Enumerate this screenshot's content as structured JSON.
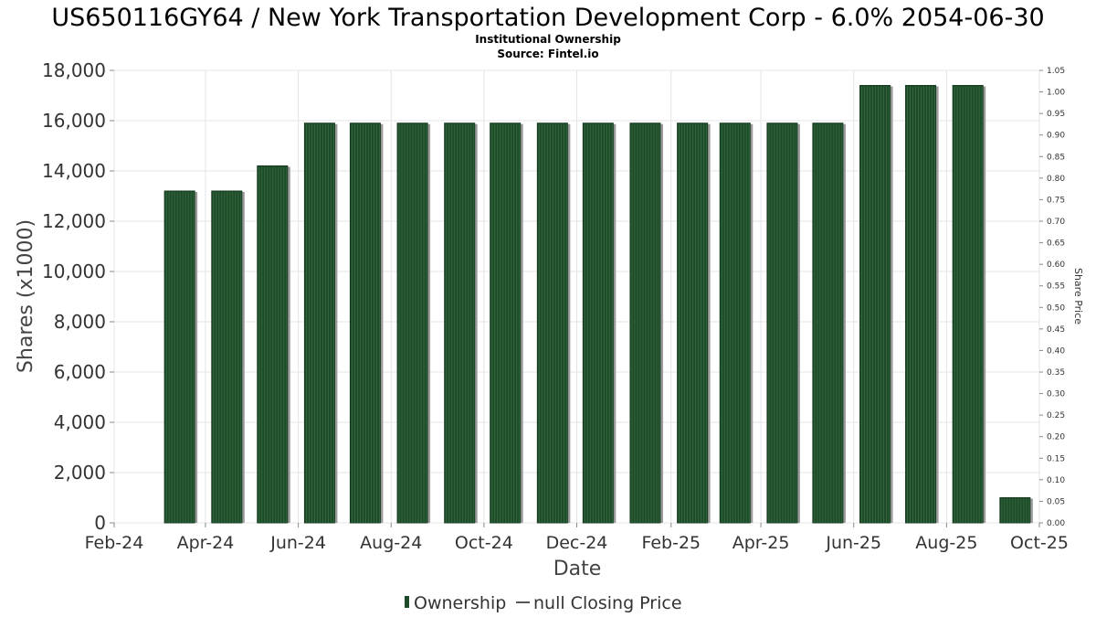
{
  "chart_data": {
    "type": "bar",
    "title": "US650116GY64 / New York Transportation Development Corp - 6.0% 2054-06-30",
    "subtitle_1": "Institutional Ownership",
    "subtitle_2": "Source: Fintel.io",
    "xlabel": "Date",
    "ylabel": "Shares (x1000)",
    "y2label": "Share Price",
    "x_range": [
      "2024-02-01",
      "2025-10-01"
    ],
    "ylim": [
      0,
      18000
    ],
    "y2lim": [
      0,
      1.05
    ],
    "xticks": [
      "Feb-24",
      "Apr-24",
      "Jun-24",
      "Aug-24",
      "Oct-24",
      "Dec-24",
      "Feb-25",
      "Apr-25",
      "Jun-25",
      "Aug-25",
      "Oct-25"
    ],
    "yticks": [
      "0",
      "2,000",
      "4,000",
      "6,000",
      "8,000",
      "10,000",
      "12,000",
      "14,000",
      "16,000",
      "18,000"
    ],
    "y2ticks": [
      "0.00",
      "0.05",
      "0.10",
      "0.15",
      "0.20",
      "0.25",
      "0.30",
      "0.35",
      "0.40",
      "0.45",
      "0.50",
      "0.55",
      "0.60",
      "0.65",
      "0.70",
      "0.75",
      "0.80",
      "0.85",
      "0.90",
      "0.95",
      "1.00",
      "1.05"
    ],
    "series": [
      {
        "name": "Ownership",
        "color": "#1f4a2a",
        "x": [
          "2024-03-15",
          "2024-04-15",
          "2024-05-15",
          "2024-06-15",
          "2024-07-15",
          "2024-08-15",
          "2024-09-15",
          "2024-10-15",
          "2024-11-15",
          "2024-12-15",
          "2025-01-15",
          "2025-02-15",
          "2025-03-15",
          "2025-04-15",
          "2025-05-15",
          "2025-06-15",
          "2025-07-15",
          "2025-08-15",
          "2025-09-15"
        ],
        "values": [
          13200,
          13200,
          14200,
          15900,
          15900,
          15900,
          15900,
          15900,
          15900,
          15900,
          15900,
          15900,
          15900,
          15900,
          15900,
          17400,
          17400,
          17400,
          1000
        ]
      }
    ],
    "legend": {
      "position": "bottom-center",
      "items": [
        {
          "label": "Ownership",
          "marker": "bar",
          "color": "#1f4a2a"
        },
        {
          "label": "null Closing Price",
          "marker": "line",
          "color": "#555555"
        }
      ]
    },
    "grid": true
  }
}
